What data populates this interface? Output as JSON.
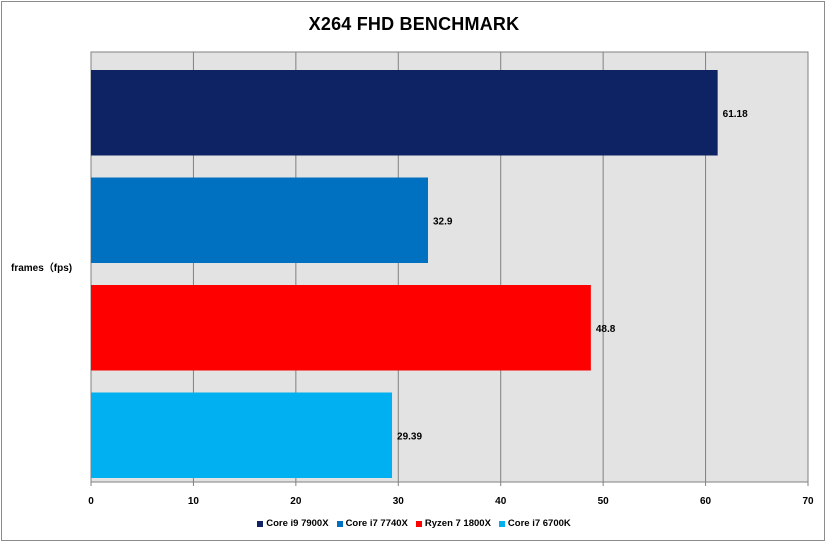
{
  "chart_data": {
    "type": "bar",
    "orientation": "horizontal",
    "title": "X264 FHD BENCHMARK",
    "category_label": "frames（fps)",
    "series": [
      {
        "name": "Core i9 7900X",
        "value": 61.18,
        "label": "61.18",
        "color": "#0d2363"
      },
      {
        "name": "Core i7 7740X",
        "value": 32.9,
        "label": "32.9",
        "color": "#0070c0"
      },
      {
        "name": "Ryzen 7 1800X",
        "value": 48.8,
        "label": "48.8",
        "color": "#ff0000"
      },
      {
        "name": "Core i7 6700K",
        "value": 29.39,
        "label": "29.39",
        "color": "#00b0f0"
      }
    ],
    "xlim": [
      0,
      70
    ],
    "xticks": [
      0,
      10,
      20,
      30,
      40,
      50,
      60,
      70
    ],
    "grid": true,
    "legend_position": "bottom",
    "plot_background": "#e3e3e3"
  }
}
